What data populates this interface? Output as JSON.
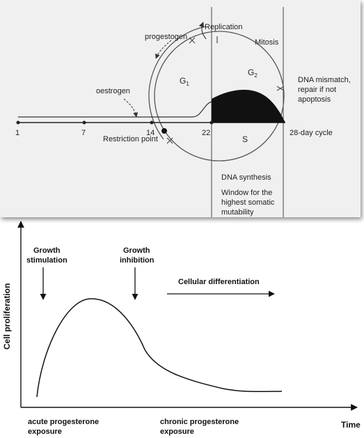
{
  "cell_cycle": {
    "day_ticks": [
      "1",
      "7",
      "14",
      "22",
      "28-day cycle"
    ],
    "replication": "Replication",
    "mitosis": "Mitosis",
    "progestogen": "progestogen",
    "oestrogen": "oestrogen",
    "g1_main": "G",
    "g1_sub": "1",
    "g2_main": "G",
    "g2_sub": "2",
    "s_phase": "S",
    "restriction_point": "Restriction point",
    "dna_mismatch": [
      "DNA mismatch,",
      "repair if not",
      "apoptosis"
    ],
    "dna_synthesis": "DNA synthesis",
    "window": [
      "Window for the",
      "highest somatic",
      "mutability"
    ]
  },
  "proliferation": {
    "y_label": "Cell proliferation",
    "x_label": "Time",
    "growth_stimulation": [
      "Growth",
      "stimulation"
    ],
    "growth_inhibition": [
      "Growth",
      "inhibition"
    ],
    "cellular_differentiation": "Cellular differentiation",
    "acute": [
      "acute progesterone",
      "exposure"
    ],
    "chronic": [
      "chronic progesterone",
      "exposure"
    ]
  }
}
